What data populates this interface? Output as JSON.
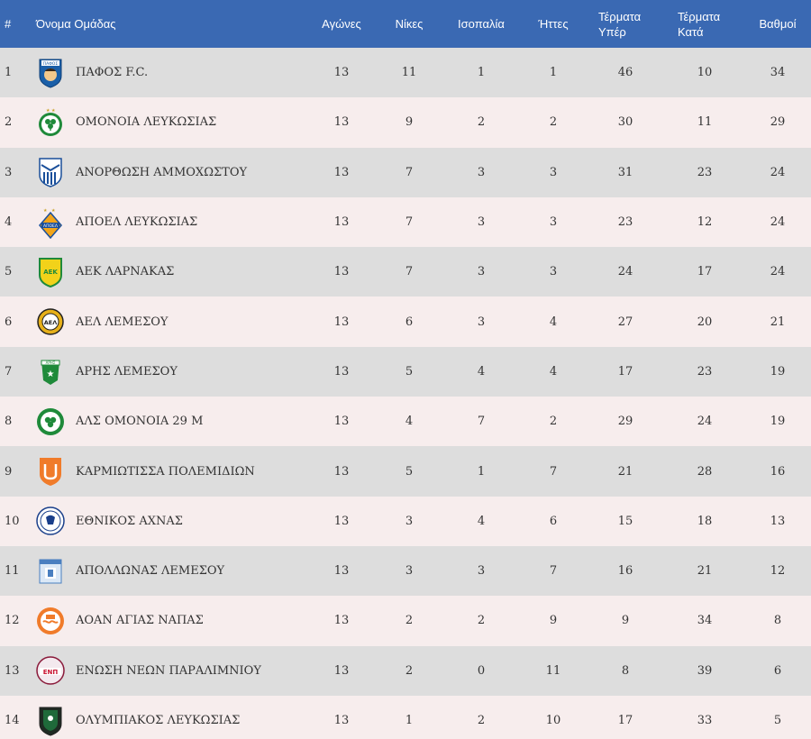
{
  "headers": {
    "pos": "#",
    "team": "Όνομα Ομάδας",
    "played": "Αγώνες",
    "wins": "Νίκες",
    "draws": "Ισοπαλία",
    "losses": "Ήττες",
    "gf_line1": "Τέρματα",
    "gf_line2": "Υπέρ",
    "ga_line1": "Τέρματα",
    "ga_line2": "Κατά",
    "points": "Βαθμοί"
  },
  "rows": [
    {
      "pos": "1",
      "team": "ΠΑΦΟΣ F.C.",
      "played": "13",
      "wins": "11",
      "draws": "1",
      "losses": "1",
      "gf": "46",
      "ga": "10",
      "pts": "34",
      "logo_text": "ΠΑΦΟΣ",
      "logo": "pafos-crest-icon"
    },
    {
      "pos": "2",
      "team": "ΟΜΟΝΟΙΑ ΛΕΥΚΩΣΙΑΣ",
      "played": "13",
      "wins": "9",
      "draws": "2",
      "losses": "2",
      "gf": "30",
      "ga": "11",
      "pts": "29",
      "logo": "omonoia-crest-icon"
    },
    {
      "pos": "3",
      "team": "ΑΝΟΡΘΩΣΗ ΑΜΜΟΧΩΣΤΟΥ",
      "played": "13",
      "wins": "7",
      "draws": "3",
      "losses": "3",
      "gf": "31",
      "ga": "23",
      "pts": "24",
      "logo": "anorthosis-crest-icon"
    },
    {
      "pos": "4",
      "team": "ΑΠΟΕΛ ΛΕΥΚΩΣΙΑΣ",
      "played": "13",
      "wins": "7",
      "draws": "3",
      "losses": "3",
      "gf": "23",
      "ga": "12",
      "pts": "24",
      "logo_text": "ΑΠΟΕΛ",
      "logo": "apoel-crest-icon"
    },
    {
      "pos": "5",
      "team": "ΑΕΚ ΛΑΡΝΑΚΑΣ",
      "played": "13",
      "wins": "7",
      "draws": "3",
      "losses": "3",
      "gf": "24",
      "ga": "17",
      "pts": "24",
      "logo_text": "ΑΕΚ",
      "logo": "aek-crest-icon"
    },
    {
      "pos": "6",
      "team": "ΑΕΛ ΛΕΜΕΣΟΥ",
      "played": "13",
      "wins": "6",
      "draws": "3",
      "losses": "4",
      "gf": "27",
      "ga": "20",
      "pts": "21",
      "logo_text": "ΑΕΛ",
      "logo": "ael-crest-icon"
    },
    {
      "pos": "7",
      "team": "ΑΡΗΣ ΛΕΜΕΣΟΥ",
      "played": "13",
      "wins": "5",
      "draws": "4",
      "losses": "4",
      "gf": "17",
      "ga": "23",
      "pts": "19",
      "logo_text": "ΑΡΗΣ",
      "logo": "aris-crest-icon"
    },
    {
      "pos": "8",
      "team": "ΑΛΣ ΟΜΟΝΟΙΑ 29 Μ",
      "played": "13",
      "wins": "4",
      "draws": "7",
      "losses": "2",
      "gf": "29",
      "ga": "24",
      "pts": "19",
      "logo": "omonoia29-crest-icon"
    },
    {
      "pos": "9",
      "team": "ΚΑΡΜΙΩΤΙΣΣΑ ΠΟΛΕΜΙΔΙΩΝ",
      "played": "13",
      "wins": "5",
      "draws": "1",
      "losses": "7",
      "gf": "21",
      "ga": "28",
      "pts": "16",
      "logo": "karmiotissa-crest-icon"
    },
    {
      "pos": "10",
      "team": "ΕΘΝΙΚΟΣ ΑΧΝΑΣ",
      "played": "13",
      "wins": "3",
      "draws": "4",
      "losses": "6",
      "gf": "15",
      "ga": "18",
      "pts": "13",
      "logo": "ethnikos-crest-icon"
    },
    {
      "pos": "11",
      "team": "ΑΠΟΛΛΩΝΑΣ ΛΕΜΕΣΟΥ",
      "played": "13",
      "wins": "3",
      "draws": "3",
      "losses": "7",
      "gf": "16",
      "ga": "21",
      "pts": "12",
      "logo": "apollon-crest-icon"
    },
    {
      "pos": "12",
      "team": "ΑΟΑΝ ΑΓΙΑΣ ΝΑΠΑΣ",
      "played": "13",
      "wins": "2",
      "draws": "2",
      "losses": "9",
      "gf": "9",
      "ga": "34",
      "pts": "8",
      "logo": "aoan-crest-icon"
    },
    {
      "pos": "13",
      "team": "ΕΝΩΣΗ ΝΕΩΝ ΠΑΡΑΛΙΜΝΙΟΥ",
      "played": "13",
      "wins": "2",
      "draws": "0",
      "losses": "11",
      "gf": "8",
      "ga": "39",
      "pts": "6",
      "logo_text": "ΕΝΠ",
      "logo": "enp-crest-icon"
    },
    {
      "pos": "14",
      "team": "ΟΛΥΜΠΙΑΚΟΣ ΛΕΥΚΩΣΙΑΣ",
      "played": "13",
      "wins": "1",
      "draws": "2",
      "losses": "10",
      "gf": "17",
      "ga": "33",
      "pts": "5",
      "logo": "olympiakos-crest-icon"
    }
  ],
  "colors": {
    "header_bg": "#3a69b3",
    "row_odd": "#dddddd",
    "row_even": "#f7eded"
  }
}
